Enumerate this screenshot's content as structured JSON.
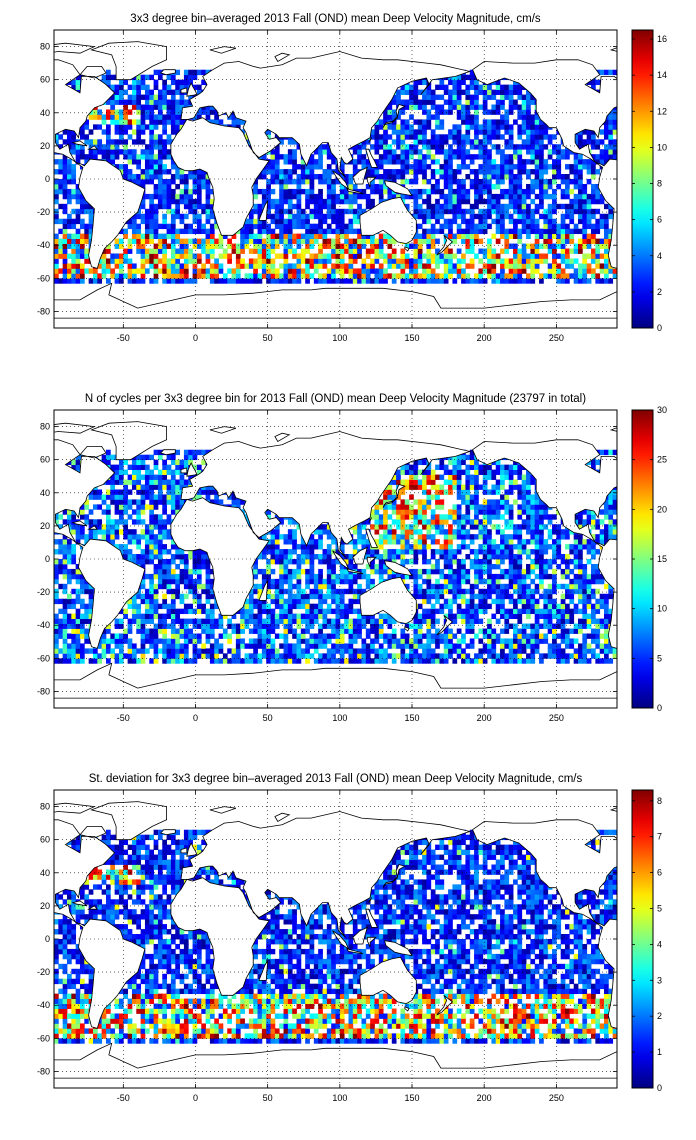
{
  "panels": [
    {
      "title": "3x3 degree bin–averaged 2013 Fall (OND) mean Deep Velocity Magnitude, cm/s",
      "colorbar_ticks": [
        "0",
        "2",
        "4",
        "6",
        "8",
        "10",
        "12",
        "14",
        "16"
      ],
      "colorbar_range": [
        0,
        16.5
      ],
      "field": "mean"
    },
    {
      "title": "N of cycles per 3x3 degree bin for 2013 Fall (OND) mean Deep Velocity Magnitude (23797 in total)",
      "colorbar_ticks": [
        "0",
        "5",
        "10",
        "15",
        "20",
        "25",
        "30"
      ],
      "colorbar_range": [
        0,
        30
      ],
      "field": "count"
    },
    {
      "title": "St. deviation for 3x3 degree bin–averaged 2013 Fall (OND) mean Deep Velocity Magnitude, cm/s",
      "colorbar_ticks": [
        "0",
        "1",
        "2",
        "3",
        "4",
        "5",
        "6",
        "7",
        "8"
      ],
      "colorbar_range": [
        0,
        8.3
      ],
      "field": "std"
    }
  ],
  "chart_data": [
    {
      "type": "heatmap",
      "title": "3x3 degree bin–averaged 2013 Fall (OND) mean Deep Velocity Magnitude, cm/s",
      "x_tick_labels": [
        "-50",
        "0",
        "50",
        "100",
        "150",
        "200",
        "250"
      ],
      "y_tick_labels": [
        "80",
        "60",
        "40",
        "20",
        "0",
        "-20",
        "-40",
        "-60",
        "-80"
      ],
      "xlim": [
        -98,
        292
      ],
      "ylim": [
        -90,
        90
      ],
      "bin_size_deg": 3,
      "colormap": "jet",
      "color_range": [
        0,
        16.5
      ],
      "grid": "dotted",
      "values_note": "low (0-4 cm/s, blue) over most ocean; high (8-16 cm/s, yellow-red) along the Southern Ocean 40-60S, Agulhas region and Gulf Stream"
    },
    {
      "type": "heatmap",
      "title": "N of cycles per 3x3 degree bin for 2013 Fall (OND) mean Deep Velocity Magnitude (23797 in total)",
      "x_tick_labels": [
        "-50",
        "0",
        "50",
        "100",
        "150",
        "200",
        "250"
      ],
      "y_tick_labels": [
        "80",
        "60",
        "40",
        "20",
        "0",
        "-20",
        "-40",
        "-60",
        "-80"
      ],
      "xlim": [
        -98,
        292
      ],
      "ylim": [
        -90,
        90
      ],
      "bin_size_deg": 3,
      "colormap": "jet",
      "color_range": [
        0,
        30
      ],
      "total_count": 23797,
      "grid": "dotted",
      "values_note": "mostly 1-10 cycles per bin; highest (20-30) in the western North Pacific"
    },
    {
      "type": "heatmap",
      "title": "St. deviation for 3x3 degree bin–averaged 2013 Fall (OND) mean Deep Velocity Magnitude, cm/s",
      "x_tick_labels": [
        "-50",
        "0",
        "50",
        "100",
        "150",
        "200",
        "250"
      ],
      "y_tick_labels": [
        "80",
        "60",
        "40",
        "20",
        "0",
        "-20",
        "-40",
        "-60",
        "-80"
      ],
      "xlim": [
        -98,
        292
      ],
      "ylim": [
        -90,
        90
      ],
      "bin_size_deg": 3,
      "colormap": "jet",
      "color_range": [
        0,
        8.3
      ],
      "grid": "dotted",
      "values_note": "mostly 0-2 cm/s; higher (4-8) along the Southern Ocean and western boundary currents"
    }
  ]
}
